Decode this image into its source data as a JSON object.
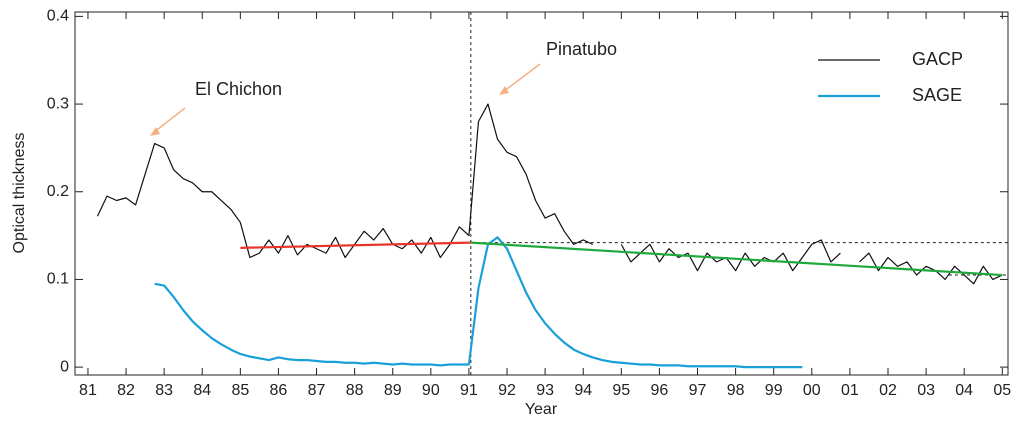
{
  "chart_data": {
    "type": "line",
    "xlabel": "Year",
    "ylabel": "Optical thickness",
    "xlim": [
      1980.66,
      2005.15
    ],
    "ylim": [
      -0.009,
      0.405
    ],
    "xticks": [
      {
        "value": 1981,
        "label": "81"
      },
      {
        "value": 1982,
        "label": "82"
      },
      {
        "value": 1983,
        "label": "83"
      },
      {
        "value": 1984,
        "label": "84"
      },
      {
        "value": 1985,
        "label": "85"
      },
      {
        "value": 1986,
        "label": "86"
      },
      {
        "value": 1987,
        "label": "87"
      },
      {
        "value": 1988,
        "label": "88"
      },
      {
        "value": 1989,
        "label": "89"
      },
      {
        "value": 1990,
        "label": "90"
      },
      {
        "value": 1991,
        "label": "91"
      },
      {
        "value": 1992,
        "label": "92"
      },
      {
        "value": 1993,
        "label": "93"
      },
      {
        "value": 1994,
        "label": "94"
      },
      {
        "value": 1995,
        "label": "95"
      },
      {
        "value": 1996,
        "label": "96"
      },
      {
        "value": 1997,
        "label": "97"
      },
      {
        "value": 1998,
        "label": "98"
      },
      {
        "value": 1999,
        "label": "99"
      },
      {
        "value": 2000,
        "label": "00"
      },
      {
        "value": 2001,
        "label": "01"
      },
      {
        "value": 2002,
        "label": "02"
      },
      {
        "value": 2003,
        "label": "03"
      },
      {
        "value": 2004,
        "label": "04"
      },
      {
        "value": 2005,
        "label": "05"
      }
    ],
    "yticks": [
      0,
      0.1,
      0.2,
      0.3,
      0.4
    ],
    "legend": "upper right",
    "series": [
      {
        "name": "GACP",
        "color": "#111111",
        "x": [
          1981.25,
          1981.5,
          1981.75,
          1982,
          1982.25,
          1982.5,
          1982.75,
          1983,
          1983.25,
          1983.5,
          1983.75,
          1984,
          1984.25,
          1984.5,
          1984.75,
          1985,
          1985.25,
          1985.5,
          1985.75,
          1986,
          1986.25,
          1986.5,
          1986.75,
          1987,
          1987.25,
          1987.5,
          1987.75,
          1988,
          1988.25,
          1988.5,
          1988.75,
          1989,
          1989.25,
          1989.5,
          1989.75,
          1990,
          1990.25,
          1990.5,
          1990.75,
          1991,
          1991.25,
          1991.5,
          1991.75,
          1992,
          1992.25,
          1992.5,
          1992.75,
          1993,
          1993.25,
          1993.5,
          1993.75,
          1994,
          1994.25,
          1994.5,
          1994.75,
          1995,
          1995.25,
          1995.5,
          1995.75,
          1996,
          1996.25,
          1996.5,
          1996.75,
          1997,
          1997.25,
          1997.5,
          1997.75,
          1998,
          1998.25,
          1998.5,
          1998.75,
          1999,
          1999.25,
          1999.5,
          1999.75,
          2000,
          2000.25,
          2000.5,
          2000.75,
          2001,
          2001.25,
          2001.5,
          2001.75,
          2002,
          2002.25,
          2002.5,
          2002.75,
          2003,
          2003.25,
          2003.5,
          2003.75,
          2004,
          2004.25,
          2004.5,
          2004.75,
          2005
        ],
        "values": [
          0.172,
          0.195,
          0.19,
          0.193,
          0.185,
          0.22,
          0.255,
          0.25,
          0.225,
          0.215,
          0.21,
          0.2,
          0.2,
          0.19,
          0.18,
          0.165,
          0.125,
          0.13,
          0.145,
          0.13,
          0.15,
          0.128,
          0.14,
          0.135,
          0.13,
          0.148,
          0.125,
          0.14,
          0.155,
          0.145,
          0.158,
          0.14,
          0.135,
          0.145,
          0.13,
          0.148,
          0.125,
          0.14,
          0.16,
          0.15,
          0.28,
          0.3,
          0.26,
          0.245,
          0.24,
          0.22,
          0.19,
          0.17,
          0.175,
          0.155,
          0.14,
          0.145,
          0.14,
          null,
          null,
          0.14,
          0.12,
          0.13,
          0.14,
          0.12,
          0.135,
          0.125,
          0.13,
          0.11,
          0.13,
          0.12,
          0.125,
          0.11,
          0.13,
          0.115,
          0.125,
          0.12,
          0.13,
          0.11,
          0.125,
          0.14,
          0.145,
          0.12,
          0.13,
          null,
          0.12,
          0.13,
          0.11,
          0.125,
          0.115,
          0.12,
          0.105,
          0.115,
          0.11,
          0.1,
          0.115,
          0.105,
          0.095,
          0.115,
          0.1,
          0.105
        ]
      },
      {
        "name": "SAGE",
        "color": "#1a9fd8",
        "x": [
          1982.75,
          1983,
          1983.25,
          1983.5,
          1983.75,
          1984,
          1984.25,
          1984.5,
          1984.75,
          1985,
          1985.25,
          1985.5,
          1985.75,
          1986,
          1986.25,
          1986.5,
          1986.75,
          1987,
          1987.25,
          1987.5,
          1987.75,
          1988,
          1988.25,
          1988.5,
          1988.75,
          1989,
          1989.25,
          1989.5,
          1989.75,
          1990,
          1990.25,
          1990.5,
          1990.75,
          1991,
          1991.25,
          1991.5,
          1991.75,
          1992,
          1992.25,
          1992.5,
          1992.75,
          1993,
          1993.25,
          1993.5,
          1993.75,
          1994,
          1994.25,
          1994.5,
          1994.75,
          1995,
          1995.25,
          1995.5,
          1995.75,
          1996,
          1996.25,
          1996.5,
          1996.75,
          1997,
          1997.25,
          1997.5,
          1997.75,
          1998,
          1998.25,
          1998.5,
          1998.75,
          1999,
          1999.25,
          1999.5,
          1999.75
        ],
        "values": [
          0.095,
          0.093,
          0.08,
          0.065,
          0.052,
          0.042,
          0.033,
          0.026,
          0.02,
          0.015,
          0.012,
          0.01,
          0.008,
          0.011,
          0.009,
          0.008,
          0.008,
          0.007,
          0.006,
          0.006,
          0.005,
          0.005,
          0.004,
          0.005,
          0.004,
          0.003,
          0.004,
          0.003,
          0.003,
          0.003,
          0.002,
          0.003,
          0.003,
          0.003,
          0.09,
          0.14,
          0.148,
          0.135,
          0.11,
          0.085,
          0.065,
          0.05,
          0.038,
          0.028,
          0.02,
          0.015,
          0.011,
          0.008,
          0.006,
          0.005,
          0.004,
          0.003,
          0.003,
          0.002,
          0.002,
          0.002,
          0.001,
          0.001,
          0.001,
          0.001,
          0.001,
          0.001,
          0,
          0,
          0,
          0,
          0,
          0,
          0
        ]
      }
    ],
    "trend_lines": [
      {
        "color": "#e8352a",
        "x": [
          1985,
          1991.05
        ],
        "values": [
          0.136,
          0.142
        ]
      },
      {
        "color": "#1fa83c",
        "x": [
          1991.05,
          2005
        ],
        "values": [
          0.142,
          0.105
        ]
      }
    ],
    "reference_lines": [
      {
        "x": [
          1991.05,
          1991.05
        ],
        "values": [
          -0.009,
          0.405
        ]
      },
      {
        "x": [
          1991.05,
          2005.15
        ],
        "values": [
          0.142,
          0.142
        ]
      },
      {
        "x": [
          2003.6,
          2005.15
        ],
        "values": [
          0.105,
          0.105
        ]
      }
    ],
    "annotations": [
      {
        "text": "El Chichon",
        "color": "#f4b183"
      },
      {
        "text": "Pinatubo",
        "color": "#f4b183"
      }
    ]
  }
}
